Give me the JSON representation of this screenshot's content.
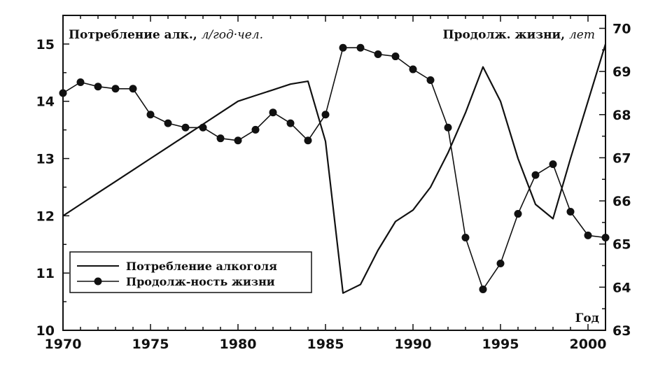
{
  "chart_data": {
    "type": "line",
    "left_axis_title": "Потребление алк., ",
    "left_axis_unit": "л/год·чел.",
    "right_axis_title": "Продолж. жизни, ",
    "right_axis_unit": "лет",
    "xlabel": "Год",
    "xlim": [
      1970,
      2001
    ],
    "ylim_left": [
      10,
      15.5
    ],
    "ylim_right": [
      63,
      70.3
    ],
    "x_ticks": [
      1970,
      1975,
      1980,
      1985,
      1990,
      1995,
      2000
    ],
    "y_ticks_left": [
      10,
      11,
      12,
      13,
      14,
      15
    ],
    "y_ticks_right": [
      63,
      64,
      65,
      66,
      67,
      68,
      69,
      70
    ],
    "legend_position": "bottom-left",
    "series": [
      {
        "name": "Потребление алкоголя",
        "axis": "left",
        "marker": "none",
        "color": "#111111",
        "x": [
          1970,
          1971,
          1972,
          1973,
          1974,
          1975,
          1976,
          1977,
          1978,
          1979,
          1980,
          1981,
          1982,
          1983,
          1984,
          1985,
          1986,
          1987,
          1988,
          1989,
          1990,
          1991,
          1992,
          1993,
          1994,
          1995,
          1996,
          1997,
          1998,
          1999,
          2000,
          2001
        ],
        "values": [
          12.0,
          12.2,
          12.4,
          12.6,
          12.8,
          13.0,
          13.2,
          13.4,
          13.6,
          13.8,
          14.0,
          14.1,
          14.2,
          14.3,
          14.35,
          13.3,
          10.65,
          10.8,
          11.4,
          11.9,
          12.1,
          12.5,
          13.1,
          13.8,
          14.6,
          14.0,
          13.0,
          12.2,
          11.95,
          13.0,
          14.0,
          15.0
        ]
      },
      {
        "name": "Продолж-ность жизни",
        "axis": "right",
        "marker": "circle",
        "color": "#111111",
        "x": [
          1970,
          1971,
          1972,
          1973,
          1974,
          1975,
          1976,
          1977,
          1978,
          1979,
          1980,
          1981,
          1982,
          1983,
          1984,
          1985,
          1986,
          1987,
          1988,
          1989,
          1990,
          1991,
          1992,
          1993,
          1994,
          1995,
          1996,
          1997,
          1998,
          1999,
          2000,
          2001
        ],
        "values": [
          68.5,
          68.75,
          68.65,
          68.6,
          68.6,
          68.0,
          67.8,
          67.7,
          67.7,
          67.45,
          67.4,
          67.65,
          68.05,
          67.8,
          67.4,
          68.0,
          69.55,
          69.55,
          69.4,
          69.35,
          69.05,
          68.8,
          67.7,
          65.15,
          63.95,
          64.55,
          65.7,
          66.6,
          66.85,
          65.75,
          65.2,
          65.15
        ]
      }
    ]
  }
}
